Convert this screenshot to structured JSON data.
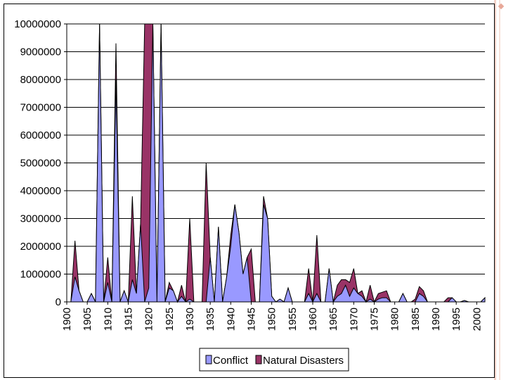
{
  "chart_data": {
    "type": "area",
    "title": "",
    "xlabel": "",
    "ylabel": "",
    "ylim": [
      0,
      10000000
    ],
    "yticks": [
      0,
      1000000,
      2000000,
      3000000,
      4000000,
      5000000,
      6000000,
      7000000,
      8000000,
      9000000,
      10000000
    ],
    "ytick_labels": [
      "0",
      "1000000",
      "2000000",
      "3000000",
      "4000000",
      "5000000",
      "6000000",
      "7000000",
      "8000000",
      "9000000",
      "10000000"
    ],
    "xlim": [
      1900,
      2002
    ],
    "xticks": [
      1900,
      1905,
      1910,
      1915,
      1920,
      1925,
      1930,
      1935,
      1940,
      1945,
      1950,
      1955,
      1960,
      1965,
      1970,
      1975,
      1980,
      1985,
      1990,
      1995,
      2000
    ],
    "xtick_labels": [
      "1900",
      "1905",
      "1910",
      "1915",
      "1920",
      "1925",
      "1930",
      "1935",
      "1940",
      "1945",
      "1950",
      "1955",
      "1960",
      "1965",
      "1970",
      "1975",
      "1980",
      "1985",
      "1990",
      "1995",
      "2000"
    ],
    "grid": "horizontal",
    "legend": "bottom",
    "x": [
      1900,
      1901,
      1902,
      1903,
      1904,
      1905,
      1906,
      1907,
      1908,
      1909,
      1910,
      1911,
      1912,
      1913,
      1914,
      1915,
      1916,
      1917,
      1918,
      1919,
      1920,
      1921,
      1922,
      1923,
      1924,
      1925,
      1926,
      1927,
      1928,
      1929,
      1930,
      1931,
      1932,
      1933,
      1934,
      1935,
      1936,
      1937,
      1938,
      1939,
      1940,
      1941,
      1942,
      1943,
      1944,
      1945,
      1946,
      1947,
      1948,
      1949,
      1950,
      1951,
      1952,
      1953,
      1954,
      1955,
      1956,
      1957,
      1958,
      1959,
      1960,
      1961,
      1962,
      1963,
      1964,
      1965,
      1966,
      1967,
      1968,
      1969,
      1970,
      1971,
      1972,
      1973,
      1974,
      1975,
      1976,
      1977,
      1978,
      1979,
      1980,
      1981,
      1982,
      1983,
      1984,
      1985,
      1986,
      1987,
      1988,
      1989,
      1990,
      1991,
      1992,
      1993,
      1994,
      1995,
      1996,
      1997,
      1998,
      1999,
      2000,
      2001,
      2002
    ],
    "series": [
      {
        "name": "Conflict",
        "color": "#9999ff",
        "values": [
          0,
          0,
          900000,
          400000,
          0,
          0,
          300000,
          0,
          10000000,
          0,
          700000,
          0,
          8000000,
          0,
          400000,
          0,
          800000,
          300000,
          2800000,
          0,
          500000,
          10000000,
          0,
          10000000,
          0,
          500000,
          400000,
          0,
          200000,
          0,
          100000,
          0,
          0,
          0,
          0,
          1600000,
          0,
          2700000,
          0,
          900000,
          2000000,
          3500000,
          2500000,
          1000000,
          1600000,
          0,
          0,
          0,
          3500000,
          3000000,
          200000,
          0,
          100000,
          0,
          500000,
          0,
          0,
          0,
          0,
          300000,
          0,
          300000,
          0,
          0,
          1200000,
          0,
          200000,
          300000,
          600000,
          200000,
          500000,
          300000,
          200000,
          0,
          100000,
          0,
          100000,
          150000,
          150000,
          0,
          0,
          0,
          300000,
          0,
          0,
          0,
          300000,
          200000,
          0,
          0,
          0,
          0,
          0,
          0,
          150000,
          0,
          0,
          50000,
          0,
          0,
          0,
          0,
          150000
        ]
      },
      {
        "name": "Natural Disasters",
        "color": "#993366",
        "values": [
          0,
          0,
          1300000,
          0,
          0,
          0,
          0,
          0,
          0,
          0,
          900000,
          0,
          1300000,
          0,
          0,
          0,
          3000000,
          0,
          0,
          10000000,
          9500000,
          0,
          0,
          0,
          0,
          200000,
          0,
          0,
          400000,
          0,
          2900000,
          0,
          0,
          0,
          5000000,
          0,
          0,
          0,
          0,
          0,
          400000,
          0,
          0,
          0,
          0,
          1900000,
          0,
          0,
          300000,
          0,
          0,
          0,
          0,
          0,
          0,
          0,
          0,
          0,
          0,
          900000,
          0,
          2100000,
          0,
          0,
          0,
          0,
          400000,
          500000,
          200000,
          500000,
          700000,
          0,
          200000,
          0,
          500000,
          0,
          200000,
          200000,
          250000,
          0,
          0,
          0,
          0,
          0,
          0,
          100000,
          250000,
          200000,
          0,
          0,
          0,
          0,
          0,
          150000,
          0,
          0,
          0,
          0,
          0,
          0,
          0,
          0,
          0
        ]
      }
    ]
  }
}
